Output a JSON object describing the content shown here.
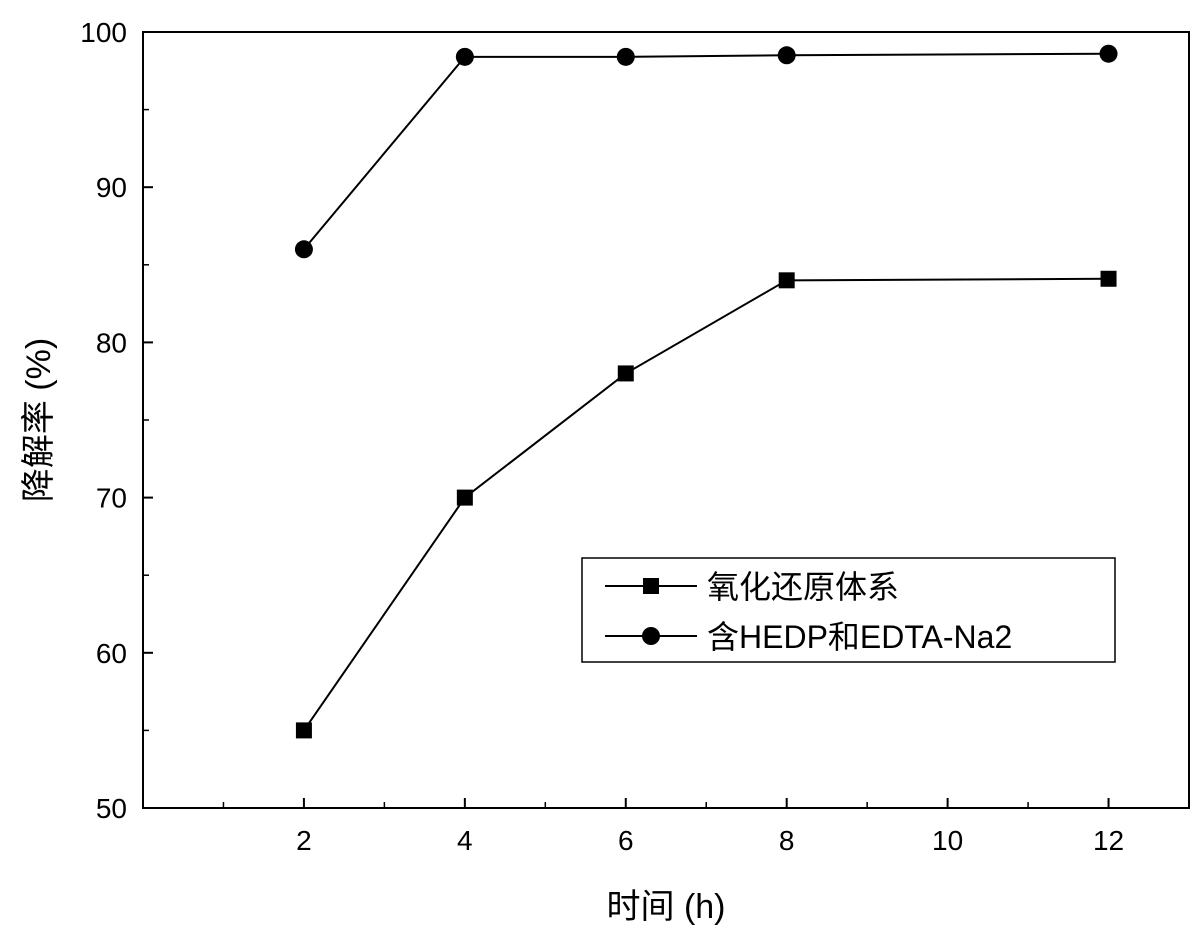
{
  "chart_data": {
    "type": "line",
    "title": "",
    "xlabel": "时间 (h)",
    "ylabel": "降解率 (%)",
    "xlim": [
      0,
      13
    ],
    "ylim": [
      50,
      100
    ],
    "x_ticks": [
      2,
      4,
      6,
      8,
      10,
      12
    ],
    "y_ticks": [
      50,
      60,
      70,
      80,
      90,
      100
    ],
    "legend_position": "lower-right",
    "grid": false,
    "series": [
      {
        "name": "氧化还原体系",
        "marker": "square",
        "color": "#000000",
        "x": [
          2,
          4,
          6,
          8,
          12
        ],
        "values": [
          55,
          70,
          78,
          84,
          84.1
        ]
      },
      {
        "name": "含HEDP和EDTA-Na2",
        "marker": "circle",
        "color": "#000000",
        "x": [
          2,
          4,
          6,
          8,
          12
        ],
        "values": [
          86,
          98.4,
          98.4,
          98.5,
          98.6
        ]
      }
    ]
  }
}
